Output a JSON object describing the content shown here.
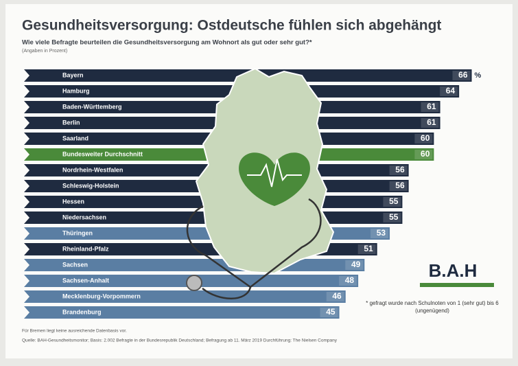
{
  "chart_data": {
    "type": "bar",
    "title": "Gesundheitsversorgung: Ostdeutsche fühlen sich abgehängt",
    "subtitle": "Wie viele Befragte beurteilen die Gesundheitsversorgung am Wohnort als gut oder sehr gut?*",
    "unit_note": "(Angaben in Prozent)",
    "unit": "%",
    "categories": [
      "Bayern",
      "Hamburg",
      "Baden-Württemberg",
      "Berlin",
      "Saarland",
      "Bundesweiter Durchschnitt",
      "Nordrhein-Westfalen",
      "Schleswig-Holstein",
      "Hessen",
      "Niedersachsen",
      "Thüringen",
      "Rheinland-Pfalz",
      "Sachsen",
      "Sachsen-Anhalt",
      "Mecklenburg-Vorpommern",
      "Brandenburg"
    ],
    "values": [
      66,
      64,
      61,
      61,
      60,
      60,
      56,
      56,
      55,
      55,
      53,
      51,
      49,
      48,
      46,
      45
    ],
    "colors": [
      "#1f2b40",
      "#1f2b40",
      "#1f2b40",
      "#1f2b40",
      "#1f2b40",
      "#4a8a3a",
      "#1f2b40",
      "#1f2b40",
      "#1f2b40",
      "#1f2b40",
      "#5a7ea3",
      "#1f2b40",
      "#5a7ea3",
      "#5a7ea3",
      "#5a7ea3",
      "#5a7ea3"
    ],
    "footnote": "* gefragt wurde nach Schulnoten von 1 (sehr gut) bis 6 (ungenügend)",
    "note": "Für Bremen liegt keine ausreichende Datenbasis vor.",
    "source": "Quelle: BAH-Gesundheitsmonitor; Basis: 2.002 Befragte in der Bundesrepublik Deutschland; Befragung ab 11. März 2019 Durchführung: The Nielsen Company",
    "logo": "B.A.H"
  }
}
